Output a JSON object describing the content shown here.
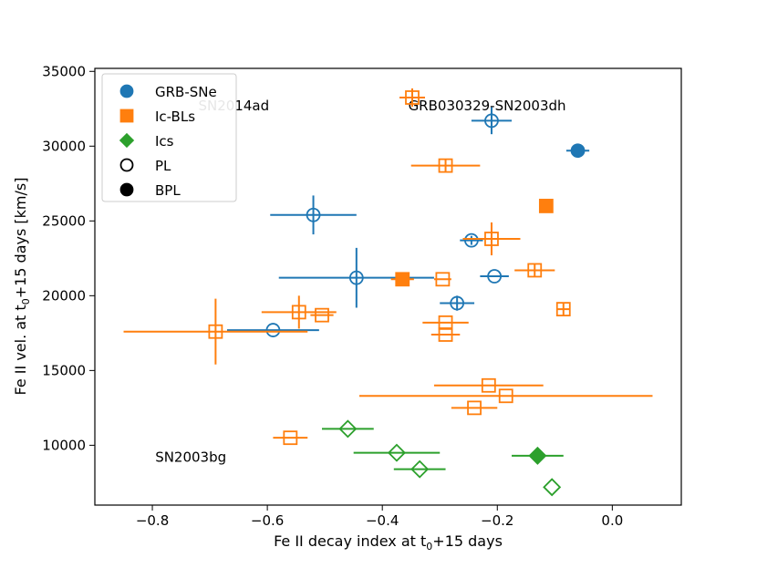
{
  "chart_data": {
    "type": "scatter",
    "xlabel": "Fe II decay index at t",
    "xlabel_sub": "0",
    "xlabel_tail": "+15 days",
    "ylabel": "Fe II vel. at t",
    "ylabel_sub": "0",
    "ylabel_tail": "+15 days [km/s]",
    "xlim": [
      -0.9,
      0.12
    ],
    "ylim": [
      6000,
      35200
    ],
    "x_ticks": [
      -0.8,
      -0.6,
      -0.4,
      -0.2,
      0.0
    ],
    "x_tick_labels": [
      "−0.8",
      "−0.6",
      "−0.4",
      "−0.2",
      "0.0"
    ],
    "y_ticks": [
      10000,
      15000,
      20000,
      25000,
      30000,
      35000
    ],
    "y_tick_labels": [
      "10000",
      "15000",
      "20000",
      "25000",
      "30000",
      "35000"
    ],
    "grid": false,
    "legend_position": "top-left",
    "colors": {
      "grb_sne": "#1f77b4",
      "ic_bl": "#ff7f0e",
      "ic": "#2ca02c"
    },
    "legend": [
      {
        "label": "GRB-SNe",
        "marker": "circle",
        "color": "#1f77b4",
        "filled": true
      },
      {
        "label": "Ic-BLs",
        "marker": "square",
        "color": "#ff7f0e",
        "filled": true
      },
      {
        "label": "Ics",
        "marker": "diamond",
        "color": "#2ca02c",
        "filled": true
      },
      {
        "label": "PL",
        "marker": "circle",
        "color": "#000000",
        "filled": false
      },
      {
        "label": "BPL",
        "marker": "circle",
        "color": "#000000",
        "filled": true
      }
    ],
    "annotations": [
      {
        "text": "SN2014ad",
        "x": -0.72,
        "y": 32400,
        "anchor": "start"
      },
      {
        "text": "GRB030329-SN2003dh",
        "x": -0.355,
        "y": 32400,
        "anchor": "start"
      },
      {
        "text": "SN2003bg",
        "x": -0.795,
        "y": 8900,
        "anchor": "start"
      }
    ],
    "series": [
      {
        "name": "GRB-SNe",
        "marker": "circle",
        "color": "#1f77b4",
        "points": [
          {
            "x": -0.21,
            "y": 31700,
            "xerr": 0.035,
            "yerr": 900,
            "filled": false
          },
          {
            "x": -0.06,
            "y": 29700,
            "xerr": 0.02,
            "yerr": 0,
            "filled": true
          },
          {
            "x": -0.52,
            "y": 25400,
            "xerr": 0.075,
            "yerr": 1300,
            "filled": false
          },
          {
            "x": -0.245,
            "y": 23700,
            "xerr": 0.02,
            "yerr": 300,
            "filled": false
          },
          {
            "x": -0.445,
            "y": 21200,
            "xerr": 0.135,
            "yerr": 2000,
            "filled": false
          },
          {
            "x": -0.205,
            "y": 21300,
            "xerr": 0.025,
            "yerr": 0,
            "filled": false
          },
          {
            "x": -0.27,
            "y": 19500,
            "xerr": 0.03,
            "yerr": 500,
            "filled": false
          },
          {
            "x": -0.59,
            "y": 17700,
            "xerr": 0.08,
            "yerr": 0,
            "filled": false
          }
        ]
      },
      {
        "name": "Ic-BLs",
        "marker": "square",
        "color": "#ff7f0e",
        "points": [
          {
            "x": -0.29,
            "y": 28700,
            "xerr": 0.06,
            "yerr": 400,
            "filled": false
          },
          {
            "x": -0.115,
            "y": 26000,
            "xerr": 0.012,
            "yerr": 0,
            "filled": true
          },
          {
            "x": -0.21,
            "y": 23800,
            "xerr": 0.05,
            "yerr": 1100,
            "filled": false
          },
          {
            "x": -0.135,
            "y": 21700,
            "xerr": 0.035,
            "yerr": 400,
            "filled": false
          },
          {
            "x": -0.365,
            "y": 21100,
            "xerr": 0.02,
            "yerr": 0,
            "filled": true
          },
          {
            "x": -0.295,
            "y": 21100,
            "xerr": 0.015,
            "yerr": 0,
            "filled": false
          },
          {
            "x": -0.085,
            "y": 19100,
            "xerr": 0.012,
            "yerr": 400,
            "filled": false
          },
          {
            "x": -0.545,
            "y": 18900,
            "xerr": 0.065,
            "yerr": 1100,
            "filled": false
          },
          {
            "x": -0.505,
            "y": 18700,
            "xerr": 0.02,
            "yerr": 0,
            "filled": false
          },
          {
            "x": -0.29,
            "y": 18200,
            "xerr": 0.04,
            "yerr": 0,
            "filled": false
          },
          {
            "x": -0.29,
            "y": 17400,
            "xerr": 0.025,
            "yerr": 0,
            "filled": false
          },
          {
            "x": -0.69,
            "y": 17600,
            "xerr": 0.16,
            "yerr": 2200,
            "filled": false
          },
          {
            "x": -0.215,
            "y": 14000,
            "xerr": 0.095,
            "yerr": 0,
            "filled": false
          },
          {
            "x": -0.185,
            "y": 13300,
            "xerr": 0.255,
            "yerr": 0,
            "filled": false
          },
          {
            "x": -0.24,
            "y": 12500,
            "xerr": 0.04,
            "yerr": 0,
            "filled": false
          },
          {
            "x": -0.56,
            "y": 10500,
            "xerr": 0.03,
            "yerr": 0,
            "filled": false
          }
        ]
      },
      {
        "name": "Ics",
        "marker": "diamond",
        "color": "#2ca02c",
        "points": [
          {
            "x": -0.46,
            "y": 11100,
            "xerr": 0.045,
            "yerr": 0,
            "filled": false
          },
          {
            "x": -0.375,
            "y": 9500,
            "xerr": 0.075,
            "yerr": 0,
            "filled": false
          },
          {
            "x": -0.335,
            "y": 8400,
            "xerr": 0.045,
            "yerr": 0,
            "filled": false
          },
          {
            "x": -0.13,
            "y": 9300,
            "xerr": 0.045,
            "yerr": 0,
            "filled": true
          },
          {
            "x": -0.105,
            "y": 7200,
            "xerr": 0,
            "yerr": 0,
            "filled": false
          }
        ]
      }
    ]
  }
}
